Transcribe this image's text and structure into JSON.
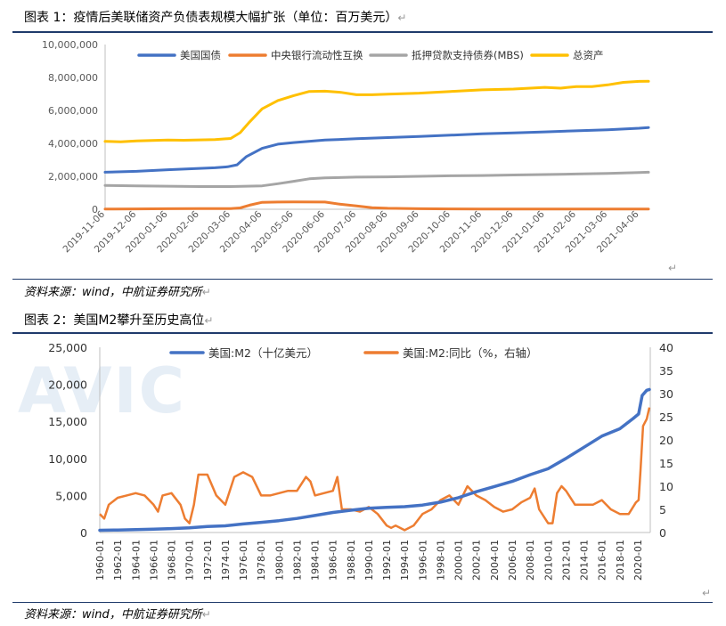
{
  "figure1": {
    "title": "图表 1：疫情后美联储资产负债表规模大幅扩张（单位：百万美元）",
    "source": "资料来源：wind，中航证券研究所",
    "chart_data": {
      "type": "line",
      "title": "疫情后美联储资产负债表规模大幅扩张（单位：百万美元）",
      "ylim": [
        0,
        10000000
      ],
      "y_ticks": [
        "0",
        "2,000,000",
        "4,000,000",
        "6,000,000",
        "8,000,000",
        "10,000,000"
      ],
      "y_tick_values": [
        0,
        2000000,
        4000000,
        6000000,
        8000000,
        10000000
      ],
      "x_labels": [
        "2019-11-06",
        "2019-12-06",
        "2020-01-06",
        "2020-02-06",
        "2020-03-06",
        "2020-04-06",
        "2020-05-06",
        "2020-06-06",
        "2020-07-06",
        "2020-08-06",
        "2020-09-06",
        "2020-10-06",
        "2020-11-06",
        "2020-12-06",
        "2021-01-06",
        "2021-02-06",
        "2021-03-06",
        "2021-04-06"
      ],
      "x_start_index": 0,
      "x_end_index": 17.3,
      "series": [
        {
          "name": "美国国债",
          "color": "#4472c4",
          "x": [
            0,
            1,
            2,
            3,
            3.5,
            3.9,
            4.2,
            4.5,
            5,
            5.5,
            6,
            7,
            8,
            9,
            10,
            11,
            12,
            13,
            14,
            15,
            16,
            17,
            17.3
          ],
          "values": [
            2250000,
            2300000,
            2400000,
            2480000,
            2520000,
            2580000,
            2700000,
            3200000,
            3700000,
            3950000,
            4050000,
            4200000,
            4280000,
            4350000,
            4420000,
            4500000,
            4580000,
            4640000,
            4700000,
            4760000,
            4820000,
            4920000,
            4960000
          ]
        },
        {
          "name": "中央银行流动性互换",
          "color": "#ed7d31",
          "x": [
            0,
            1,
            2,
            3,
            4,
            4.3,
            4.6,
            5,
            5.5,
            6,
            7,
            7.5,
            8,
            8.5,
            9,
            10,
            11,
            12,
            13,
            14,
            15,
            16,
            17,
            17.3
          ],
          "values": [
            10000,
            20000,
            35000,
            40000,
            45000,
            80000,
            250000,
            420000,
            440000,
            450000,
            440000,
            300000,
            200000,
            100000,
            60000,
            30000,
            20000,
            15000,
            10000,
            10000,
            10000,
            10000,
            10000,
            10000
          ]
        },
        {
          "name": "抵押贷款支持债券(MBS)",
          "color": "#a5a5a5",
          "x": [
            0,
            1,
            2,
            3,
            4,
            5,
            5.5,
            6,
            6.5,
            7,
            8,
            9,
            10,
            11,
            12,
            13,
            14,
            15,
            16,
            17,
            17.3
          ],
          "values": [
            1450000,
            1420000,
            1400000,
            1380000,
            1380000,
            1420000,
            1550000,
            1700000,
            1850000,
            1900000,
            1950000,
            1970000,
            2000000,
            2030000,
            2050000,
            2080000,
            2110000,
            2140000,
            2180000,
            2230000,
            2250000
          ]
        },
        {
          "name": "总资产",
          "color": "#ffc000",
          "x": [
            0,
            0.5,
            1,
            1.5,
            2,
            2.5,
            3,
            3.5,
            4,
            4.3,
            4.6,
            5,
            5.5,
            6,
            6.5,
            7,
            7.5,
            8,
            8.5,
            9,
            10,
            11,
            12,
            13,
            14,
            14.5,
            15,
            15.5,
            16,
            16.5,
            17,
            17.3
          ],
          "values": [
            4120000,
            4100000,
            4150000,
            4180000,
            4200000,
            4190000,
            4210000,
            4230000,
            4300000,
            4650000,
            5300000,
            6100000,
            6600000,
            6900000,
            7150000,
            7170000,
            7100000,
            6950000,
            6950000,
            6990000,
            7050000,
            7150000,
            7250000,
            7300000,
            7400000,
            7350000,
            7450000,
            7450000,
            7550000,
            7700000,
            7760000,
            7770000
          ]
        }
      ]
    }
  },
  "figure2": {
    "title": "图表 2：美国M2攀升至历史高位",
    "source": "资料来源：wind，中航证券研究所",
    "chart_data": {
      "type": "line",
      "title": "美国M2攀升至历史高位",
      "ylim": [
        0,
        25000
      ],
      "y_ticks": [
        "0",
        "5,000",
        "10,000",
        "15,000",
        "20,000",
        "25,000"
      ],
      "y_tick_values": [
        0,
        5000,
        10000,
        15000,
        20000,
        25000
      ],
      "y2lim": [
        0,
        40
      ],
      "y2_ticks": [
        "0",
        "5",
        "10",
        "15",
        "20",
        "25",
        "30",
        "35",
        "40"
      ],
      "y2_tick_values": [
        0,
        5,
        10,
        15,
        20,
        25,
        30,
        35,
        40
      ],
      "x_labels": [
        "1960-01",
        "1962-01",
        "1964-01",
        "1966-01",
        "1968-01",
        "1970-01",
        "1972-01",
        "1974-01",
        "1976-01",
        "1978-01",
        "1980-01",
        "1982-01",
        "1984-01",
        "1986-01",
        "1988-01",
        "1990-01",
        "1992-01",
        "1994-01",
        "1996-01",
        "1998-01",
        "2000-01",
        "2002-01",
        "2004-01",
        "2006-01",
        "2008-01",
        "2010-01",
        "2012-01",
        "2014-01",
        "2016-01",
        "2018-01",
        "2020-01"
      ],
      "x_range": [
        1960,
        2021.4
      ],
      "series": [
        {
          "name": "美国:M2（十亿美元）",
          "axis": "left",
          "color": "#4472c4",
          "x": [
            1960,
            1962,
            1964,
            1966,
            1968,
            1970,
            1972,
            1974,
            1976,
            1978,
            1980,
            1982,
            1984,
            1986,
            1988,
            1990,
            1992,
            1994,
            1996,
            1998,
            2000,
            2002,
            2004,
            2006,
            2008,
            2010,
            2012,
            2014,
            2016,
            2018,
            2019.5,
            2020.1,
            2020.5,
            2021,
            2021.3
          ],
          "values": [
            300,
            340,
            390,
            450,
            530,
            620,
            800,
            900,
            1150,
            1370,
            1600,
            1900,
            2300,
            2700,
            3000,
            3270,
            3400,
            3480,
            3700,
            4100,
            4700,
            5500,
            6200,
            6900,
            7800,
            8600,
            10000,
            11500,
            13000,
            14000,
            15400,
            16000,
            18500,
            19200,
            19300
          ]
        },
        {
          "name": "美国:M2:同比（%，右轴）",
          "axis": "right",
          "color": "#ed7d31",
          "x": [
            1960,
            1960.5,
            1961,
            1962,
            1963,
            1964,
            1965,
            1966,
            1966.5,
            1967,
            1968,
            1969,
            1969.5,
            1970,
            1970.5,
            1971,
            1972,
            1973,
            1974,
            1975,
            1976,
            1977,
            1978,
            1979,
            1980,
            1981,
            1982,
            1983,
            1983.5,
            1984,
            1985,
            1986,
            1986.5,
            1987,
            1988,
            1989,
            1990,
            1991,
            1992,
            1992.5,
            1993,
            1994,
            1995,
            1996,
            1997,
            1998,
            1999,
            2000,
            2001,
            2002,
            2003,
            2004,
            2005,
            2006,
            2007,
            2008,
            2008.5,
            2009,
            2010,
            2010.5,
            2011,
            2011.5,
            2012,
            2013,
            2014,
            2015,
            2016,
            2017,
            2018,
            2019,
            2019.8,
            2020.1,
            2020.3,
            2020.6,
            2021,
            2021.3
          ],
          "values": [
            4,
            3,
            6,
            7.5,
            8,
            8.5,
            8,
            6,
            4.5,
            8,
            8.5,
            6,
            3,
            2,
            6,
            12.5,
            12.5,
            8,
            6,
            12,
            13,
            12,
            8,
            8,
            8.5,
            9,
            9,
            12,
            11,
            8,
            8.5,
            9,
            12,
            5,
            5,
            4.5,
            5.5,
            4,
            1.5,
            1,
            1.5,
            0.5,
            1.5,
            4,
            5,
            7,
            8,
            6,
            10,
            8,
            7,
            5.5,
            4.5,
            5,
            6.5,
            7.5,
            9.5,
            5,
            2,
            2,
            8.5,
            10,
            9,
            6,
            6,
            6,
            7,
            5,
            4,
            4,
            6.5,
            7,
            13,
            23,
            24.5,
            27
          ]
        }
      ]
    }
  },
  "watermark": "AVIC",
  "marks": {
    "return": "↵",
    "small": "↓"
  }
}
